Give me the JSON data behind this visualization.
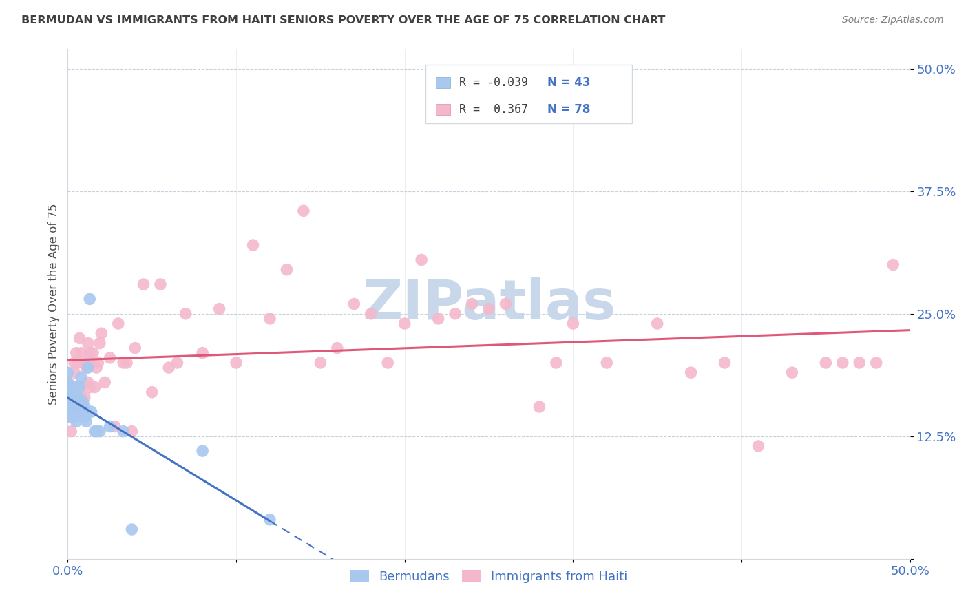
{
  "title": "BERMUDAN VS IMMIGRANTS FROM HAITI SENIORS POVERTY OVER THE AGE OF 75 CORRELATION CHART",
  "source": "Source: ZipAtlas.com",
  "ylabel": "Seniors Poverty Over the Age of 75",
  "xlim": [
    0.0,
    0.5
  ],
  "ylim": [
    0.0,
    0.52
  ],
  "yticks": [
    0.0,
    0.125,
    0.25,
    0.375,
    0.5
  ],
  "ytick_labels": [
    "",
    "12.5%",
    "25.0%",
    "37.5%",
    "50.0%"
  ],
  "color_bermuda": "#a8c8f0",
  "color_haiti": "#f4b8cc",
  "color_bermuda_line": "#4472c4",
  "color_haiti_line": "#e05878",
  "watermark_color": "#c8d8ea",
  "title_color": "#404040",
  "axis_color": "#4472c4",
  "bermuda_x": [
    0.0,
    0.0,
    0.0,
    0.0,
    0.0,
    0.0,
    0.0,
    0.0,
    0.002,
    0.002,
    0.002,
    0.002,
    0.003,
    0.003,
    0.003,
    0.003,
    0.004,
    0.004,
    0.005,
    0.005,
    0.005,
    0.005,
    0.006,
    0.006,
    0.007,
    0.007,
    0.008,
    0.008,
    0.009,
    0.01,
    0.01,
    0.011,
    0.012,
    0.013,
    0.014,
    0.016,
    0.017,
    0.019,
    0.025,
    0.033,
    0.038,
    0.08,
    0.12
  ],
  "bermuda_y": [
    0.145,
    0.15,
    0.155,
    0.16,
    0.165,
    0.175,
    0.18,
    0.19,
    0.145,
    0.15,
    0.155,
    0.16,
    0.145,
    0.15,
    0.16,
    0.165,
    0.145,
    0.175,
    0.14,
    0.155,
    0.16,
    0.165,
    0.155,
    0.165,
    0.15,
    0.175,
    0.155,
    0.185,
    0.16,
    0.145,
    0.155,
    0.14,
    0.195,
    0.265,
    0.15,
    0.13,
    0.13,
    0.13,
    0.135,
    0.13,
    0.03,
    0.11,
    0.04
  ],
  "haiti_x": [
    0.0,
    0.0,
    0.0,
    0.002,
    0.003,
    0.004,
    0.004,
    0.005,
    0.005,
    0.006,
    0.006,
    0.007,
    0.007,
    0.008,
    0.008,
    0.009,
    0.009,
    0.01,
    0.01,
    0.011,
    0.012,
    0.012,
    0.013,
    0.013,
    0.014,
    0.015,
    0.016,
    0.017,
    0.018,
    0.019,
    0.02,
    0.022,
    0.025,
    0.028,
    0.03,
    0.033,
    0.035,
    0.038,
    0.04,
    0.045,
    0.05,
    0.055,
    0.06,
    0.065,
    0.07,
    0.08,
    0.09,
    0.1,
    0.11,
    0.12,
    0.13,
    0.14,
    0.15,
    0.16,
    0.17,
    0.18,
    0.19,
    0.2,
    0.21,
    0.22,
    0.23,
    0.24,
    0.25,
    0.26,
    0.28,
    0.29,
    0.3,
    0.32,
    0.35,
    0.37,
    0.39,
    0.41,
    0.43,
    0.45,
    0.46,
    0.47,
    0.48,
    0.49
  ],
  "haiti_y": [
    0.165,
    0.17,
    0.18,
    0.13,
    0.175,
    0.19,
    0.2,
    0.155,
    0.21,
    0.175,
    0.2,
    0.175,
    0.225,
    0.165,
    0.21,
    0.16,
    0.2,
    0.165,
    0.2,
    0.195,
    0.18,
    0.22,
    0.175,
    0.21,
    0.2,
    0.21,
    0.175,
    0.195,
    0.2,
    0.22,
    0.23,
    0.18,
    0.205,
    0.135,
    0.24,
    0.2,
    0.2,
    0.13,
    0.215,
    0.28,
    0.17,
    0.28,
    0.195,
    0.2,
    0.25,
    0.21,
    0.255,
    0.2,
    0.32,
    0.245,
    0.295,
    0.355,
    0.2,
    0.215,
    0.26,
    0.25,
    0.2,
    0.24,
    0.305,
    0.245,
    0.25,
    0.26,
    0.255,
    0.26,
    0.155,
    0.2,
    0.24,
    0.2,
    0.24,
    0.19,
    0.2,
    0.115,
    0.19,
    0.2,
    0.2,
    0.2,
    0.2,
    0.3
  ]
}
